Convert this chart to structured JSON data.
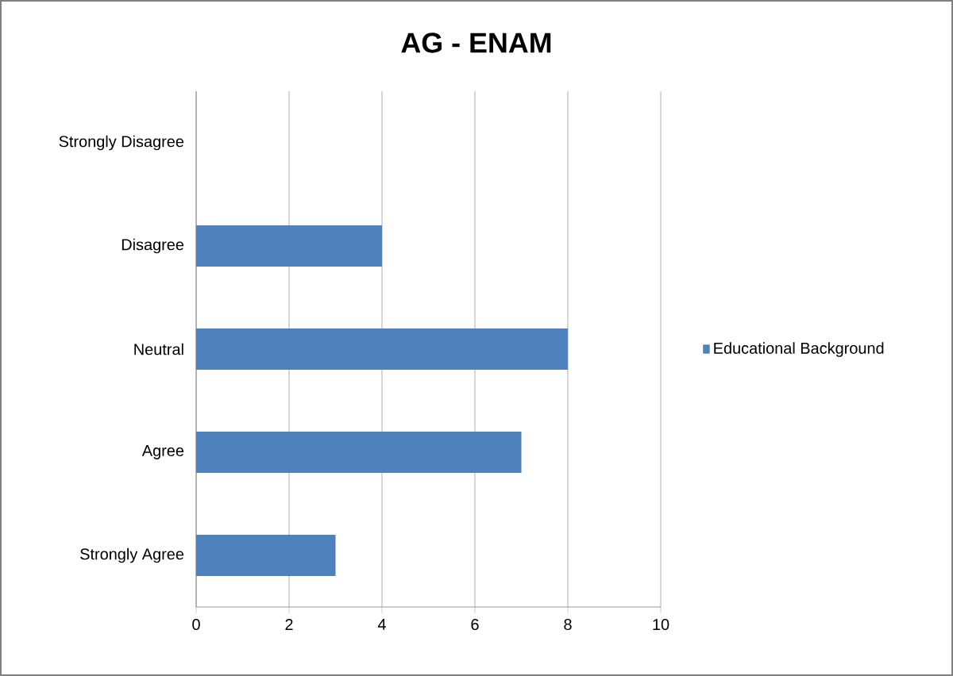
{
  "chart_data": {
    "type": "bar",
    "orientation": "horizontal",
    "title": "AG - ENAM",
    "categories": [
      "Strongly Disagree",
      "Disagree",
      "Neutral",
      "Agree",
      "Strongly Agree"
    ],
    "series": [
      {
        "name": "Educational Background",
        "color": "#4f81bd",
        "values": [
          0,
          4,
          8,
          7,
          3
        ]
      }
    ],
    "xlim": [
      0,
      10
    ],
    "xticks": [
      0,
      2,
      4,
      6,
      8,
      10
    ],
    "grid": "x",
    "legend": "right"
  }
}
